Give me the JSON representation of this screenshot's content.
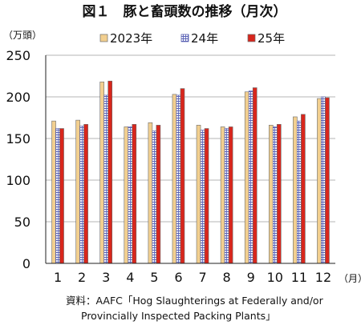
{
  "chart_data": {
    "type": "bar",
    "title": "図１　豚と畜頭数の推移（月次）",
    "ylabel": "（万頭）",
    "xunit": "（月）",
    "ylim": [
      0,
      250
    ],
    "yticks": [
      0,
      50,
      100,
      150,
      200,
      250
    ],
    "categories": [
      "1",
      "2",
      "3",
      "4",
      "5",
      "6",
      "7",
      "8",
      "9",
      "10",
      "11",
      "12"
    ],
    "legend_position": "top",
    "grid": true,
    "series": [
      {
        "name": "2023年",
        "color": "#f2cf8f",
        "pattern": "solid",
        "values": [
          171,
          172,
          218,
          164,
          169,
          203,
          166,
          164,
          206,
          166,
          176,
          198
        ]
      },
      {
        "name": "24年",
        "color": "#8a8fc8",
        "pattern": "grid",
        "values": [
          162,
          165,
          202,
          164,
          159,
          202,
          160,
          162,
          207,
          164,
          171,
          200
        ]
      },
      {
        "name": "25年",
        "color": "#d8261c",
        "pattern": "solid",
        "values": [
          162,
          167,
          219,
          167,
          166,
          210,
          162,
          164,
          211,
          167,
          179,
          199
        ]
      }
    ]
  },
  "source": {
    "line1": "資料：AAFC「Hog Slaughterings at Federally and/or",
    "line2": "Provincially Inspected Packing Plants」"
  }
}
